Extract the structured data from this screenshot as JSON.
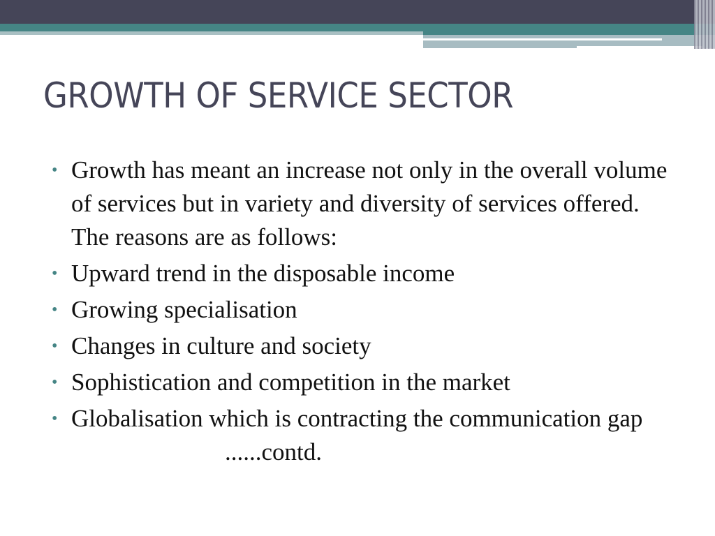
{
  "slide": {
    "title": "GROWTH OF SERVICE SECTOR",
    "bullets": [
      "Growth has meant an increase not only in the overall volume of services but in variety and diversity of services offered. The reasons are as follows:",
      "Upward trend in the disposable income",
      "Growing specialisation",
      "Changes in culture and society",
      "Sophistication and competition in the market",
      "Globalisation which is contracting the communication gap"
    ],
    "continuation": "......contd."
  },
  "colors": {
    "header_dark": "#454558",
    "header_teal": "#458585",
    "bullet": "#458585"
  }
}
